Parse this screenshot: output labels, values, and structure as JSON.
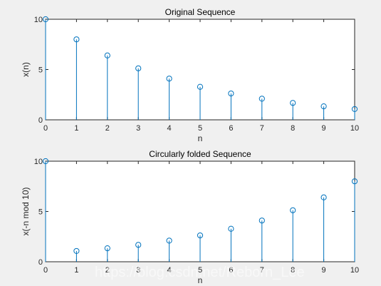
{
  "colors": {
    "figure_bg": "#f0f0f0",
    "axes_bg": "#ffffff",
    "axes_line": "#262626",
    "stem": "#0072bd"
  },
  "watermark": "https://blog.csdn.net/Reborn_Lee",
  "chart_data": [
    {
      "type": "stem",
      "title": "Original Sequence",
      "xlabel": "n",
      "ylabel": "x(n)",
      "xlim": [
        0,
        10
      ],
      "ylim": [
        0,
        10
      ],
      "xticks": [
        "0",
        "1",
        "2",
        "3",
        "4",
        "5",
        "6",
        "7",
        "8",
        "9",
        "10"
      ],
      "yticks": [
        "0",
        "5",
        "10"
      ],
      "x": [
        0,
        1,
        2,
        3,
        4,
        5,
        6,
        7,
        8,
        9,
        10
      ],
      "values": [
        10,
        8,
        6.4,
        5.12,
        4.1,
        3.28,
        2.62,
        2.1,
        1.68,
        1.34,
        1.07
      ],
      "marker": "circle",
      "grid": false
    },
    {
      "type": "stem",
      "title": "Circularly folded Sequence",
      "xlabel": "n",
      "ylabel": "x(-n mod 10)",
      "xlim": [
        0,
        10
      ],
      "ylim": [
        0,
        10
      ],
      "xticks": [
        "0",
        "1",
        "2",
        "3",
        "4",
        "5",
        "6",
        "7",
        "8",
        "9",
        "10"
      ],
      "yticks": [
        "0",
        "5",
        "10"
      ],
      "x": [
        0,
        1,
        2,
        3,
        4,
        5,
        6,
        7,
        8,
        9,
        10
      ],
      "values": [
        10,
        1.07,
        1.34,
        1.68,
        2.1,
        2.62,
        3.28,
        4.1,
        5.12,
        6.4,
        8
      ],
      "marker": "circle",
      "grid": false
    }
  ]
}
